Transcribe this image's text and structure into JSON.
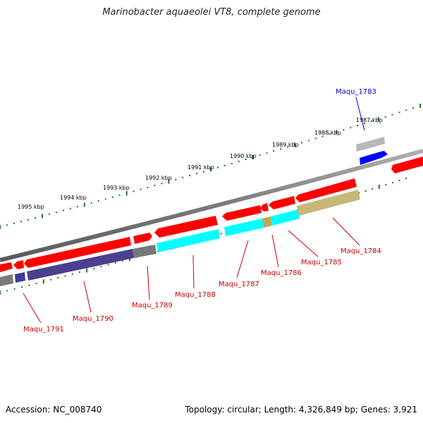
{
  "title": "Marinobacter aquaeolei VT8, complete genome",
  "accession": "Accession: NC_008740",
  "topology": "Topology: circular; Length: 4,326,849 bp; Genes: 3,921",
  "colors": {
    "forward_gene": "#ff0000",
    "reverse_gene_highlight": "#0000ff",
    "backbone": "#808080",
    "tick": "#1a7a1a",
    "label_red": "#cc0000",
    "label_blue": "#0000cc",
    "cyan_feature": "#00ffff",
    "olive_feature": "#c8b878",
    "purple_feature": "#4b3f8f",
    "gray_feature": "#777777"
  },
  "kbp_labels": [
    "1995 kbp",
    "1994 kbp",
    "1993 kbp",
    "1992 kbp",
    "1991 kbp",
    "1990 kbp",
    "1989 kbp",
    "1988 kbp",
    "1987 kbp"
  ],
  "gene_labels": [
    {
      "text": "Maqu_1783",
      "color": "blue"
    },
    {
      "text": "Maqu_1784",
      "color": "red"
    },
    {
      "text": "Maqu_1785",
      "color": "red"
    },
    {
      "text": "Maqu_1786",
      "color": "red"
    },
    {
      "text": "Maqu_1787",
      "color": "red"
    },
    {
      "text": "Maqu_1788",
      "color": "red"
    },
    {
      "text": "Maqu_1789",
      "color": "red"
    },
    {
      "text": "Maqu_1790",
      "color": "red"
    },
    {
      "text": "Maqu_1791",
      "color": "red"
    }
  ]
}
